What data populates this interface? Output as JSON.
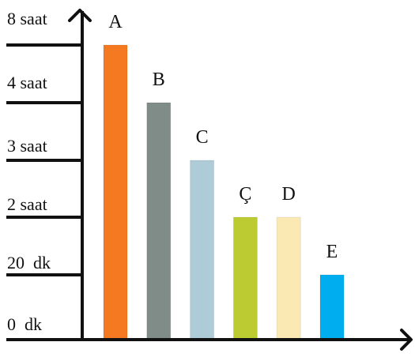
{
  "chart_data": {
    "type": "bar",
    "title": "",
    "xlabel": "",
    "ylabel": "",
    "y_ticks": [
      "0  dk",
      "20  dk",
      "2 saat",
      "3 saat",
      "4 saat",
      "8 saat"
    ],
    "categories": [
      "A",
      "B",
      "C",
      "Ç",
      "D",
      "E"
    ],
    "values_note_unit": "ordinal tick index",
    "values": [
      5,
      4,
      3,
      2,
      2,
      1
    ],
    "colors": [
      "#F47920",
      "#7F8C88",
      "#AECBD8",
      "#BCCB32",
      "#FAE9B2",
      "#00AEEF"
    ],
    "legend": "none",
    "grid": false
  }
}
